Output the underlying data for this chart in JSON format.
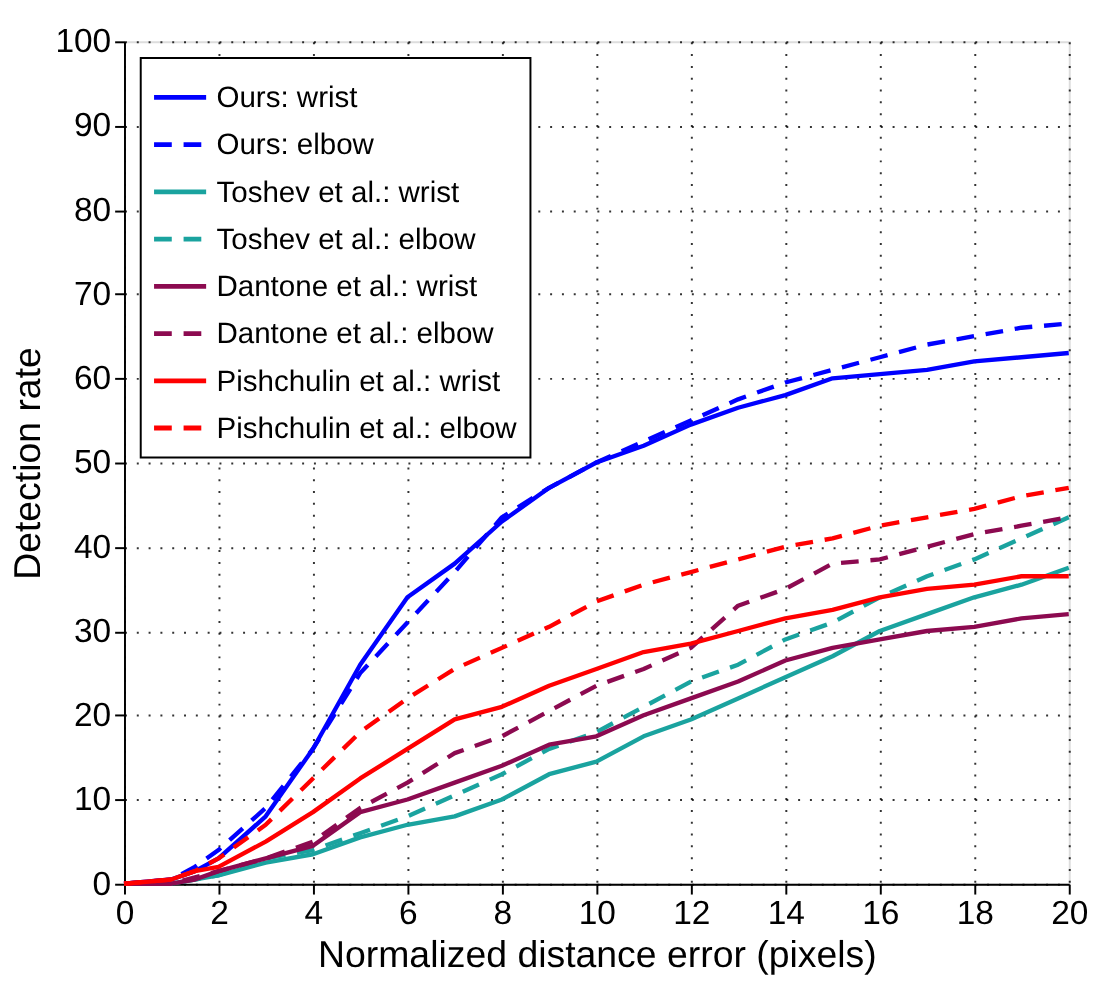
{
  "chart_data": {
    "type": "line",
    "xlabel": "Normalized distance error (pixels)",
    "ylabel": "Detection rate",
    "xlim": [
      0,
      20
    ],
    "ylim": [
      0,
      100
    ],
    "xticks": [
      0,
      2,
      4,
      6,
      8,
      10,
      12,
      14,
      16,
      18,
      20
    ],
    "yticks": [
      0,
      10,
      20,
      30,
      40,
      50,
      60,
      70,
      80,
      90,
      100
    ],
    "grid": true,
    "legend": "top left",
    "marker": "none",
    "series": [
      {
        "name": "Ours: wrist",
        "color": "#0000ff",
        "line_style": "solid",
        "x": [
          0,
          1,
          1.5,
          2,
          3,
          4,
          5,
          6,
          7,
          8,
          9,
          10,
          11,
          12,
          13,
          14,
          15,
          16,
          17,
          18,
          19,
          20
        ],
        "values": [
          0,
          0.5,
          1.5,
          3,
          8,
          16,
          26,
          34,
          38,
          43,
          47,
          50,
          52,
          54.5,
          56.5,
          58,
          60,
          60.5,
          61,
          62,
          62.5,
          63
        ]
      },
      {
        "name": "Ours: elbow",
        "color": "#0000ff",
        "line_style": "dashed",
        "x": [
          0,
          1,
          1.5,
          2,
          3,
          4,
          5,
          6,
          7,
          8,
          9,
          10,
          11,
          12,
          13,
          14,
          15,
          16,
          17,
          18,
          19,
          20
        ],
        "values": [
          0,
          0.5,
          2,
          4,
          9,
          16,
          25,
          31,
          37,
          43.5,
          47,
          50,
          52.5,
          55,
          57.5,
          59.5,
          61,
          62.5,
          64,
          65,
          66,
          66.5
        ]
      },
      {
        "name": "Toshev et al.: wrist",
        "color": "#1aa39f",
        "line_style": "solid",
        "x": [
          0,
          1,
          2,
          3,
          4,
          5,
          6,
          7,
          8,
          9,
          10,
          11,
          12,
          13,
          14,
          15,
          16,
          17,
          18,
          19,
          20
        ],
        "values": [
          0,
          0,
          1,
          2.5,
          3.5,
          5.5,
          7,
          8,
          10,
          13,
          14.5,
          17.5,
          19.5,
          22,
          24.5,
          27,
          30,
          32,
          34,
          35.5,
          37.5
        ]
      },
      {
        "name": "Toshev et al.: elbow",
        "color": "#1aa39f",
        "line_style": "dashed",
        "x": [
          0,
          1,
          2,
          3,
          4,
          5,
          6,
          7,
          8,
          9,
          10,
          11,
          12,
          13,
          14,
          15,
          16,
          17,
          18,
          19,
          20
        ],
        "values": [
          0,
          0,
          1,
          3,
          4,
          6,
          8,
          10.5,
          13,
          16,
          18,
          21,
          24,
          26,
          29,
          31,
          34,
          36.5,
          38.5,
          41,
          43.5
        ]
      },
      {
        "name": "Dantone et al.: wrist",
        "color": "#8c0a50",
        "line_style": "solid",
        "x": [
          0,
          1,
          1.5,
          2,
          3,
          4,
          5,
          6,
          7,
          8,
          9,
          10,
          11,
          12,
          13,
          14,
          15,
          16,
          17,
          18,
          19,
          20
        ],
        "values": [
          0,
          0,
          0.5,
          1.5,
          3,
          4.5,
          8.5,
          10,
          12,
          14,
          16.5,
          17.5,
          20,
          22,
          24,
          26.5,
          28,
          29,
          30,
          30.5,
          31.5,
          32
        ]
      },
      {
        "name": "Dantone et al.: elbow",
        "color": "#8c0a50",
        "line_style": "dashed",
        "x": [
          0,
          1,
          2,
          3,
          4,
          5,
          6,
          7,
          8,
          9,
          10,
          11,
          12,
          13,
          14,
          15,
          16,
          17,
          18,
          19,
          20
        ],
        "values": [
          0,
          0,
          1.5,
          3,
          5,
          9,
          12,
          15.5,
          17.5,
          20.5,
          23.5,
          25.5,
          28,
          33,
          35,
          38,
          38.5,
          40,
          41.5,
          42.5,
          43.5
        ]
      },
      {
        "name": "Pishchulin et al.: wrist",
        "color": "#ff0000",
        "line_style": "solid",
        "x": [
          0,
          1,
          1.5,
          2,
          3,
          4,
          5,
          6,
          7,
          8,
          9,
          10,
          11,
          12,
          13,
          14,
          15,
          16,
          17,
          18,
          19,
          20
        ],
        "values": [
          0,
          0.5,
          1.5,
          2,
          5,
          8.5,
          12.5,
          16,
          19.5,
          21,
          23.5,
          25.5,
          27.5,
          28.5,
          30,
          31.5,
          32.5,
          34,
          35,
          35.5,
          36.5,
          36.5
        ]
      },
      {
        "name": "Pishchulin et al.: elbow",
        "color": "#ff0000",
        "line_style": "dashed",
        "x": [
          0,
          1,
          1.5,
          2,
          3,
          4,
          5,
          6,
          7,
          8,
          9,
          10,
          11,
          12,
          13,
          14,
          15,
          16,
          17,
          18,
          19,
          20
        ],
        "values": [
          0,
          0.5,
          1.5,
          3,
          7,
          12.5,
          18,
          22,
          25.5,
          28,
          30.5,
          33.5,
          35.5,
          37,
          38.5,
          40,
          41,
          42.5,
          43.5,
          44.5,
          46,
          47
        ]
      }
    ]
  }
}
